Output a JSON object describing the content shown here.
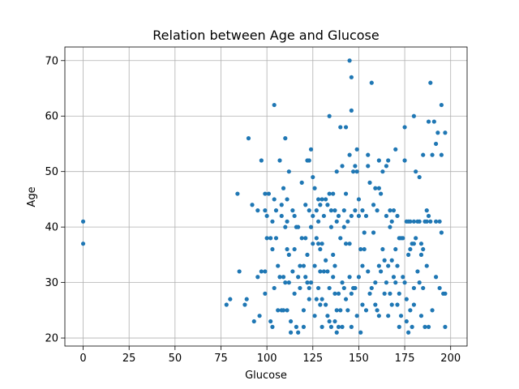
{
  "chart_data": {
    "type": "scatter",
    "title": "Relation between Age and Glucose",
    "xlabel": "Glucose",
    "ylabel": "Age",
    "xlim": [
      -9.95,
      208.95
    ],
    "ylim": [
      18.55,
      72.45
    ],
    "xticks": [
      0,
      25,
      50,
      75,
      100,
      125,
      150,
      175,
      200
    ],
    "yticks": [
      20,
      30,
      40,
      50,
      60,
      70
    ],
    "grid": true,
    "color": "#1f77b4",
    "points": [
      [
        0,
        41
      ],
      [
        0,
        37
      ],
      [
        78,
        26
      ],
      [
        80,
        27
      ],
      [
        84,
        46
      ],
      [
        85,
        32
      ],
      [
        88,
        26
      ],
      [
        89,
        27
      ],
      [
        90,
        56
      ],
      [
        92,
        44
      ],
      [
        93,
        23
      ],
      [
        95,
        31
      ],
      [
        95,
        43
      ],
      [
        96,
        24
      ],
      [
        97,
        52
      ],
      [
        97,
        32
      ],
      [
        99,
        46
      ],
      [
        99,
        43
      ],
      [
        99,
        32
      ],
      [
        99,
        28
      ],
      [
        100,
        42
      ],
      [
        100,
        38
      ],
      [
        101,
        46
      ],
      [
        102,
        23
      ],
      [
        102,
        38
      ],
      [
        103,
        41
      ],
      [
        103,
        36
      ],
      [
        103,
        22
      ],
      [
        104,
        62
      ],
      [
        104,
        45
      ],
      [
        104,
        29
      ],
      [
        105,
        43
      ],
      [
        105,
        38
      ],
      [
        106,
        25
      ],
      [
        106,
        33
      ],
      [
        107,
        52
      ],
      [
        107,
        31
      ],
      [
        108,
        25
      ],
      [
        108,
        44
      ],
      [
        108,
        42
      ],
      [
        109,
        47
      ],
      [
        109,
        31
      ],
      [
        109,
        25
      ],
      [
        110,
        56
      ],
      [
        110,
        40
      ],
      [
        110,
        30
      ],
      [
        111,
        45
      ],
      [
        111,
        41
      ],
      [
        111,
        25
      ],
      [
        111,
        36
      ],
      [
        112,
        50
      ],
      [
        112,
        35
      ],
      [
        112,
        30
      ],
      [
        113,
        23
      ],
      [
        113,
        21
      ],
      [
        114,
        43
      ],
      [
        114,
        32
      ],
      [
        115,
        42
      ],
      [
        115,
        36
      ],
      [
        115,
        28
      ],
      [
        116,
        40
      ],
      [
        116,
        22
      ],
      [
        117,
        40
      ],
      [
        117,
        31
      ],
      [
        117,
        21
      ],
      [
        118,
        29
      ],
      [
        118,
        33
      ],
      [
        119,
        48
      ],
      [
        119,
        38
      ],
      [
        120,
        33
      ],
      [
        120,
        25
      ],
      [
        120,
        22
      ],
      [
        121,
        44
      ],
      [
        121,
        38
      ],
      [
        121,
        31
      ],
      [
        122,
        52
      ],
      [
        122,
        35
      ],
      [
        122,
        30
      ],
      [
        123,
        52
      ],
      [
        123,
        43
      ],
      [
        123,
        29
      ],
      [
        123,
        27
      ],
      [
        124,
        54
      ],
      [
        124,
        40
      ],
      [
        124,
        30
      ],
      [
        125,
        49
      ],
      [
        125,
        42
      ],
      [
        125,
        37
      ],
      [
        126,
        47
      ],
      [
        126,
        33
      ],
      [
        126,
        24
      ],
      [
        127,
        43
      ],
      [
        127,
        38
      ],
      [
        127,
        27
      ],
      [
        128,
        45
      ],
      [
        128,
        41
      ],
      [
        128,
        37
      ],
      [
        128,
        29
      ],
      [
        129,
        44
      ],
      [
        129,
        36
      ],
      [
        129,
        32
      ],
      [
        129,
        26
      ],
      [
        130,
        45
      ],
      [
        130,
        37
      ],
      [
        130,
        27
      ],
      [
        130,
        22
      ],
      [
        131,
        42
      ],
      [
        131,
        32
      ],
      [
        132,
        45
      ],
      [
        132,
        34
      ],
      [
        132,
        26
      ],
      [
        133,
        44
      ],
      [
        133,
        32
      ],
      [
        133,
        24
      ],
      [
        134,
        46
      ],
      [
        134,
        29
      ],
      [
        134,
        23
      ],
      [
        134,
        60
      ],
      [
        135,
        43
      ],
      [
        135,
        40
      ],
      [
        135,
        22
      ],
      [
        136,
        46
      ],
      [
        136,
        35
      ],
      [
        136,
        31
      ],
      [
        137,
        43
      ],
      [
        137,
        33
      ],
      [
        137,
        28
      ],
      [
        137,
        23
      ],
      [
        138,
        50
      ],
      [
        138,
        41
      ],
      [
        138,
        25
      ],
      [
        138,
        21
      ],
      [
        139,
        42
      ],
      [
        139,
        28
      ],
      [
        139,
        22
      ],
      [
        140,
        58
      ],
      [
        140,
        38
      ],
      [
        140,
        25
      ],
      [
        141,
        51
      ],
      [
        141,
        30
      ],
      [
        141,
        22
      ],
      [
        142,
        43
      ],
      [
        142,
        40
      ],
      [
        142,
        29
      ],
      [
        143,
        58
      ],
      [
        143,
        46
      ],
      [
        143,
        37
      ],
      [
        143,
        27
      ],
      [
        144,
        41
      ],
      [
        144,
        25
      ],
      [
        145,
        70
      ],
      [
        145,
        53
      ],
      [
        145,
        37
      ],
      [
        145,
        31
      ],
      [
        146,
        61
      ],
      [
        146,
        67
      ],
      [
        146,
        42
      ],
      [
        146,
        28
      ],
      [
        146,
        22
      ],
      [
        147,
        50
      ],
      [
        147,
        29
      ],
      [
        148,
        51
      ],
      [
        148,
        43
      ],
      [
        148,
        29
      ],
      [
        149,
        54
      ],
      [
        149,
        50
      ],
      [
        149,
        24
      ],
      [
        150,
        45
      ],
      [
        150,
        42
      ],
      [
        150,
        31
      ],
      [
        151,
        36
      ],
      [
        151,
        21
      ],
      [
        152,
        43
      ],
      [
        152,
        33
      ],
      [
        152,
        26
      ],
      [
        153,
        39
      ],
      [
        153,
        36
      ],
      [
        154,
        42
      ],
      [
        154,
        25
      ],
      [
        155,
        53
      ],
      [
        155,
        51
      ],
      [
        155,
        32
      ],
      [
        156,
        48
      ],
      [
        156,
        28
      ],
      [
        157,
        66
      ],
      [
        157,
        29
      ],
      [
        158,
        44
      ],
      [
        158,
        39
      ],
      [
        159,
        47
      ],
      [
        159,
        30
      ],
      [
        159,
        26
      ],
      [
        160,
        43
      ],
      [
        160,
        25
      ],
      [
        161,
        52
      ],
      [
        161,
        47
      ],
      [
        161,
        33
      ],
      [
        161,
        24
      ],
      [
        162,
        46
      ],
      [
        162,
        32
      ],
      [
        163,
        50
      ],
      [
        163,
        36
      ],
      [
        164,
        34
      ],
      [
        164,
        28
      ],
      [
        165,
        51
      ],
      [
        165,
        42
      ],
      [
        165,
        30
      ],
      [
        166,
        52
      ],
      [
        166,
        33
      ],
      [
        166,
        24
      ],
      [
        167,
        43
      ],
      [
        167,
        40
      ],
      [
        167,
        28
      ],
      [
        168,
        41
      ],
      [
        168,
        34
      ],
      [
        168,
        26
      ],
      [
        169,
        43
      ],
      [
        169,
        31
      ],
      [
        170,
        54
      ],
      [
        170,
        36
      ],
      [
        170,
        30
      ],
      [
        171,
        42
      ],
      [
        171,
        33
      ],
      [
        171,
        26
      ],
      [
        172,
        38
      ],
      [
        172,
        28
      ],
      [
        172,
        22
      ],
      [
        173,
        38
      ],
      [
        173,
        24
      ],
      [
        174,
        38
      ],
      [
        174,
        31
      ],
      [
        175,
        52
      ],
      [
        175,
        58
      ],
      [
        175,
        30
      ],
      [
        176,
        41
      ],
      [
        176,
        27
      ],
      [
        176,
        23
      ],
      [
        177,
        41
      ],
      [
        177,
        35
      ],
      [
        177,
        21
      ],
      [
        178,
        41
      ],
      [
        178,
        36
      ],
      [
        178,
        25
      ],
      [
        179,
        37
      ],
      [
        179,
        22
      ],
      [
        180,
        60
      ],
      [
        180,
        41
      ],
      [
        180,
        37
      ],
      [
        180,
        29
      ],
      [
        180,
        26
      ],
      [
        181,
        50
      ],
      [
        181,
        38
      ],
      [
        182,
        41
      ],
      [
        182,
        32
      ],
      [
        183,
        49
      ],
      [
        183,
        41
      ],
      [
        183,
        30
      ],
      [
        184,
        37
      ],
      [
        184,
        35
      ],
      [
        184,
        24
      ],
      [
        185,
        53
      ],
      [
        185,
        36
      ],
      [
        185,
        29
      ],
      [
        186,
        41
      ],
      [
        186,
        22
      ],
      [
        187,
        43
      ],
      [
        187,
        41
      ],
      [
        187,
        33
      ],
      [
        188,
        59
      ],
      [
        188,
        42
      ],
      [
        188,
        22
      ],
      [
        189,
        66
      ],
      [
        189,
        41
      ],
      [
        190,
        25
      ],
      [
        190,
        53
      ],
      [
        191,
        59
      ],
      [
        192,
        55
      ],
      [
        192,
        41
      ],
      [
        192,
        31
      ],
      [
        193,
        57
      ],
      [
        194,
        41
      ],
      [
        194,
        29
      ],
      [
        195,
        62
      ],
      [
        195,
        53
      ],
      [
        195,
        39
      ],
      [
        196,
        28
      ],
      [
        197,
        22
      ],
      [
        197,
        57
      ],
      [
        197,
        28
      ]
    ]
  }
}
